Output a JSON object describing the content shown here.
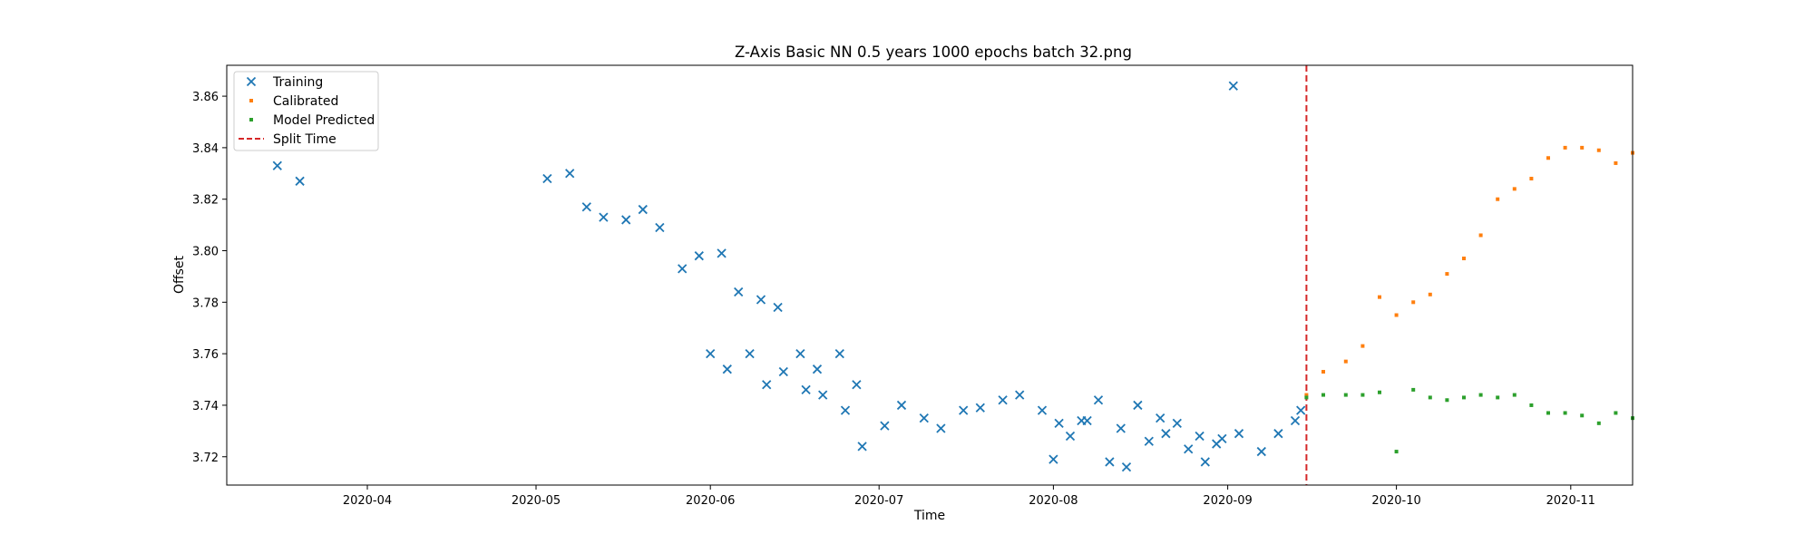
{
  "chart_data": {
    "type": "scatter",
    "title": "Z-Axis Basic NN 0.5 years 1000 epochs batch 32.png",
    "xlabel": "Time",
    "ylabel": "Offset",
    "xlim": [
      "2020-03-07",
      "2020-11-12"
    ],
    "ylim": [
      3.709,
      3.872
    ],
    "x_ticks": [
      "2020-04",
      "2020-05",
      "2020-06",
      "2020-07",
      "2020-08",
      "2020-09",
      "2020-10",
      "2020-11"
    ],
    "y_ticks": [
      "3.72",
      "3.74",
      "3.76",
      "3.78",
      "3.80",
      "3.82",
      "3.84",
      "3.86"
    ],
    "grid": false,
    "legend": {
      "position": "top-left"
    },
    "split_time": {
      "name": "Split Time",
      "x": "2020-09-15",
      "color": "#d62728",
      "style": "dashed"
    },
    "series": [
      {
        "name": "Training",
        "marker": "x",
        "color": "#1f77b4",
        "points": [
          [
            "2020-03-16",
            3.833
          ],
          [
            "2020-03-20",
            3.827
          ],
          [
            "2020-05-03",
            3.828
          ],
          [
            "2020-05-07",
            3.83
          ],
          [
            "2020-05-10",
            3.817
          ],
          [
            "2020-05-13",
            3.813
          ],
          [
            "2020-05-17",
            3.812
          ],
          [
            "2020-05-20",
            3.816
          ],
          [
            "2020-05-23",
            3.809
          ],
          [
            "2020-05-27",
            3.793
          ],
          [
            "2020-05-30",
            3.798
          ],
          [
            "2020-06-03",
            3.799
          ],
          [
            "2020-06-06",
            3.784
          ],
          [
            "2020-06-10",
            3.781
          ],
          [
            "2020-06-13",
            3.778
          ],
          [
            "2020-06-17",
            3.76
          ],
          [
            "2020-06-20",
            3.754
          ],
          [
            "2020-06-24",
            3.76
          ],
          [
            "2020-06-27",
            3.748
          ],
          [
            "2020-06-01",
            3.76
          ],
          [
            "2020-06-04",
            3.754
          ],
          [
            "2020-06-08",
            3.76
          ],
          [
            "2020-06-11",
            3.748
          ],
          [
            "2020-06-14",
            3.753
          ],
          [
            "2020-06-18",
            3.746
          ],
          [
            "2020-06-21",
            3.744
          ],
          [
            "2020-06-25",
            3.738
          ],
          [
            "2020-06-28",
            3.724
          ],
          [
            "2020-07-02",
            3.732
          ],
          [
            "2020-07-05",
            3.74
          ],
          [
            "2020-07-09",
            3.735
          ],
          [
            "2020-07-12",
            3.731
          ],
          [
            "2020-07-16",
            3.738
          ],
          [
            "2020-07-19",
            3.739
          ],
          [
            "2020-07-23",
            3.742
          ],
          [
            "2020-07-26",
            3.744
          ],
          [
            "2020-07-30",
            3.738
          ],
          [
            "2020-08-02",
            3.733
          ],
          [
            "2020-08-06",
            3.734
          ],
          [
            "2020-08-09",
            3.742
          ],
          [
            "2020-08-13",
            3.731
          ],
          [
            "2020-08-16",
            3.74
          ],
          [
            "2020-08-20",
            3.735
          ],
          [
            "2020-08-23",
            3.733
          ],
          [
            "2020-08-27",
            3.728
          ],
          [
            "2020-08-30",
            3.725
          ],
          [
            "2020-08-01",
            3.719
          ],
          [
            "2020-08-04",
            3.728
          ],
          [
            "2020-08-07",
            3.734
          ],
          [
            "2020-08-11",
            3.718
          ],
          [
            "2020-08-14",
            3.716
          ],
          [
            "2020-08-18",
            3.726
          ],
          [
            "2020-08-21",
            3.729
          ],
          [
            "2020-08-25",
            3.723
          ],
          [
            "2020-08-28",
            3.718
          ],
          [
            "2020-08-31",
            3.727
          ],
          [
            "2020-09-03",
            3.729
          ],
          [
            "2020-09-07",
            3.722
          ],
          [
            "2020-09-10",
            3.729
          ],
          [
            "2020-09-13",
            3.734
          ],
          [
            "2020-09-02",
            3.864
          ],
          [
            "2020-09-14",
            3.738
          ]
        ]
      },
      {
        "name": "Calibrated",
        "marker": "square",
        "color": "#ff7f0e",
        "points": [
          [
            "2020-09-15",
            3.744
          ],
          [
            "2020-09-18",
            3.753
          ],
          [
            "2020-09-22",
            3.757
          ],
          [
            "2020-09-25",
            3.763
          ],
          [
            "2020-09-28",
            3.782
          ],
          [
            "2020-10-01",
            3.775
          ],
          [
            "2020-10-04",
            3.78
          ],
          [
            "2020-10-07",
            3.783
          ],
          [
            "2020-10-10",
            3.791
          ],
          [
            "2020-10-13",
            3.797
          ],
          [
            "2020-10-16",
            3.806
          ],
          [
            "2020-10-19",
            3.82
          ],
          [
            "2020-10-22",
            3.824
          ],
          [
            "2020-10-25",
            3.828
          ],
          [
            "2020-10-28",
            3.836
          ],
          [
            "2020-10-31",
            3.84
          ],
          [
            "2020-11-03",
            3.84
          ],
          [
            "2020-11-06",
            3.839
          ],
          [
            "2020-11-09",
            3.834
          ],
          [
            "2020-11-12",
            3.838
          ]
        ]
      },
      {
        "name": "Model Predicted",
        "marker": "square",
        "color": "#2ca02c",
        "points": [
          [
            "2020-09-15",
            3.743
          ],
          [
            "2020-09-18",
            3.744
          ],
          [
            "2020-09-22",
            3.744
          ],
          [
            "2020-09-25",
            3.744
          ],
          [
            "2020-09-28",
            3.745
          ],
          [
            "2020-10-01",
            3.722
          ],
          [
            "2020-10-04",
            3.746
          ],
          [
            "2020-10-07",
            3.743
          ],
          [
            "2020-10-10",
            3.742
          ],
          [
            "2020-10-13",
            3.743
          ],
          [
            "2020-10-16",
            3.744
          ],
          [
            "2020-10-19",
            3.743
          ],
          [
            "2020-10-22",
            3.744
          ],
          [
            "2020-10-25",
            3.74
          ],
          [
            "2020-10-28",
            3.737
          ],
          [
            "2020-10-31",
            3.737
          ],
          [
            "2020-11-03",
            3.736
          ],
          [
            "2020-11-06",
            3.733
          ],
          [
            "2020-11-09",
            3.737
          ],
          [
            "2020-11-12",
            3.735
          ]
        ]
      }
    ]
  }
}
